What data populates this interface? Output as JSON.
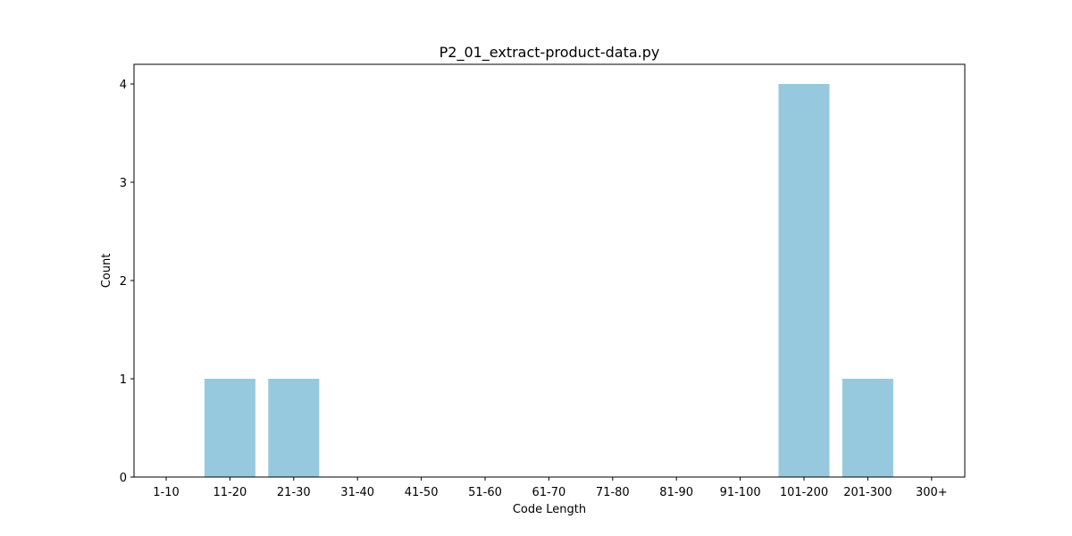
{
  "chart_data": {
    "type": "bar",
    "title": "P2_01_extract-product-data.py",
    "xlabel": "Code Length",
    "ylabel": "Count",
    "categories": [
      "1-10",
      "11-20",
      "21-30",
      "31-40",
      "41-50",
      "51-60",
      "61-70",
      "71-80",
      "81-90",
      "91-100",
      "101-200",
      "201-300",
      "300+"
    ],
    "values": [
      0,
      1,
      1,
      0,
      0,
      0,
      0,
      0,
      0,
      0,
      4,
      1,
      0
    ],
    "ylim": [
      0,
      4.2
    ],
    "yticks": [
      0,
      1,
      2,
      3,
      4
    ],
    "bar_color": "#96c9dd",
    "grid": false,
    "legend": "none"
  }
}
